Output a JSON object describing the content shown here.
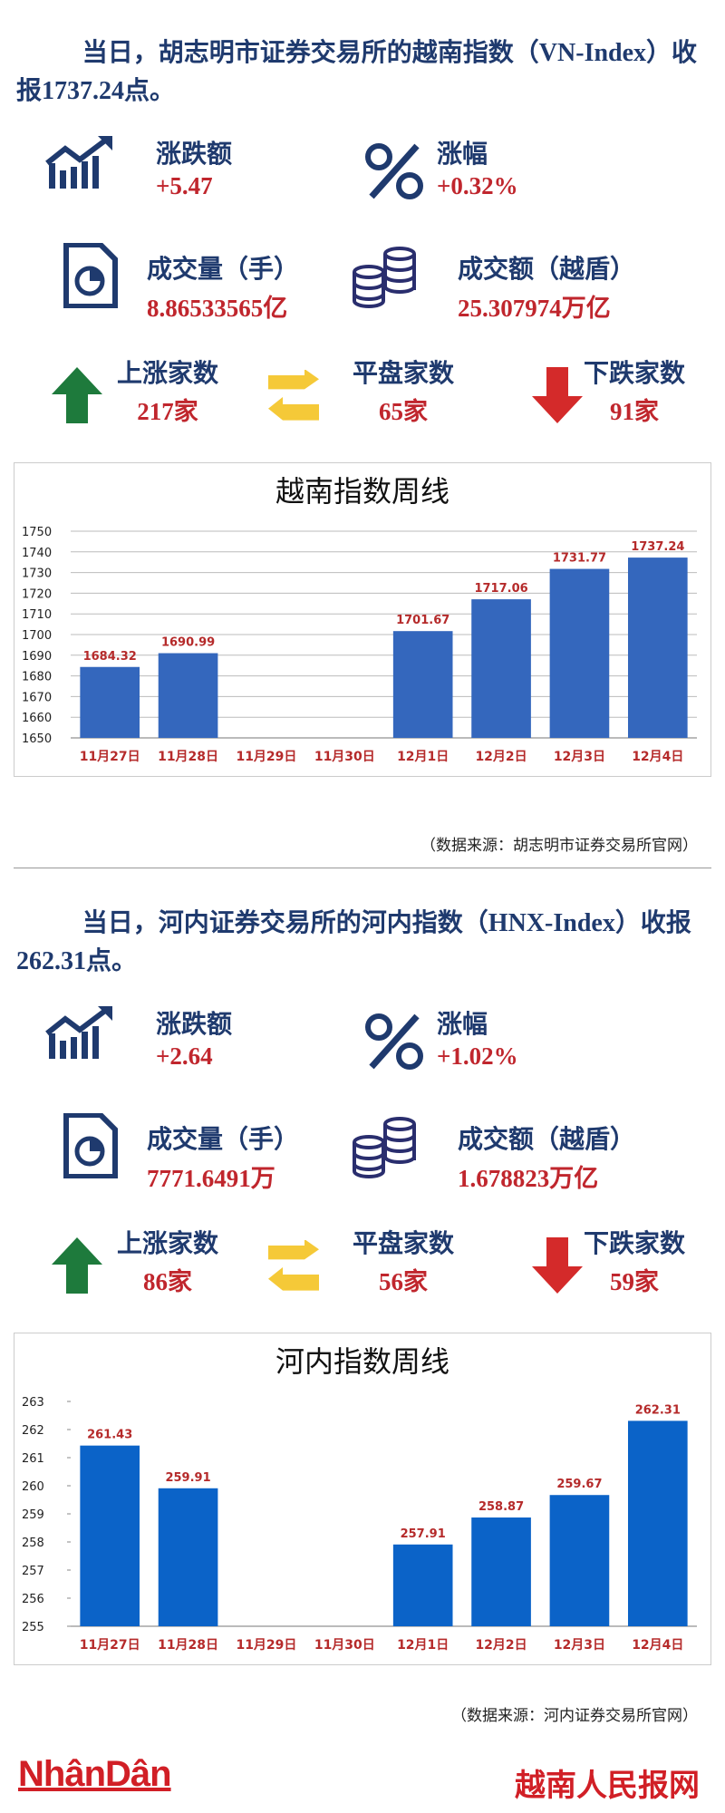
{
  "sections": [
    {
      "headline": "当日，胡志明市证券交易所的越南指数（VN-Index）收报1737.24点。",
      "stats": [
        {
          "label": "涨跌额",
          "value": "+5.47"
        },
        {
          "label": "涨幅",
          "value": "+0.32%"
        },
        {
          "label": "成交量（手）",
          "value": "8.86533565亿"
        },
        {
          "label": "成交额（越盾）",
          "value": "25.307974万亿"
        },
        {
          "label": "上涨家数",
          "value": "217家"
        },
        {
          "label": "平盘家数",
          "value": "65家"
        },
        {
          "label": "下跌家数",
          "value": "91家"
        }
      ],
      "source": "（数据来源：胡志明市证券交易所官网）"
    },
    {
      "headline": "当日，河内证券交易所的河内指数（HNX-Index）收报262.31点。",
      "stats": [
        {
          "label": "涨跌额",
          "value": "+2.64"
        },
        {
          "label": "涨幅",
          "value": "+1.02%"
        },
        {
          "label": "成交量（手）",
          "value": "7771.6491万"
        },
        {
          "label": "成交额（越盾）",
          "value": "1.678823万亿"
        },
        {
          "label": "上涨家数",
          "value": "86家"
        },
        {
          "label": "平盘家数",
          "value": "56家"
        },
        {
          "label": "下跌家数",
          "value": "59家"
        }
      ],
      "source": "（数据来源：河内证券交易所官网）"
    }
  ],
  "chart_data": [
    {
      "type": "bar",
      "title": "越南指数周线",
      "categories": [
        "11月27日",
        "11月28日",
        "11月29日",
        "11月30日",
        "12月1日",
        "12月2日",
        "12月3日",
        "12月4日"
      ],
      "values": [
        1684.32,
        1690.99,
        null,
        null,
        1701.67,
        1717.06,
        1731.77,
        1737.24
      ],
      "color": "#3467bd",
      "ylim": [
        1650,
        1750
      ],
      "yticks": [
        1650,
        1660,
        1670,
        1680,
        1690,
        1700,
        1710,
        1720,
        1730,
        1740,
        1750
      ],
      "grid": true
    },
    {
      "type": "bar",
      "title": "河内指数周线",
      "categories": [
        "11月27日",
        "11月28日",
        "11月29日",
        "11月30日",
        "12月1日",
        "12月2日",
        "12月3日",
        "12月4日"
      ],
      "values": [
        261.43,
        259.91,
        null,
        null,
        257.91,
        258.87,
        259.67,
        262.31
      ],
      "color": "#0b63c8",
      "ylim": [
        255,
        263
      ],
      "yticks": [
        255,
        256,
        257,
        258,
        259,
        260,
        261,
        262,
        263
      ],
      "grid": false
    }
  ],
  "footer": {
    "logo": "NhânDân",
    "brand": "越南人民报网"
  }
}
